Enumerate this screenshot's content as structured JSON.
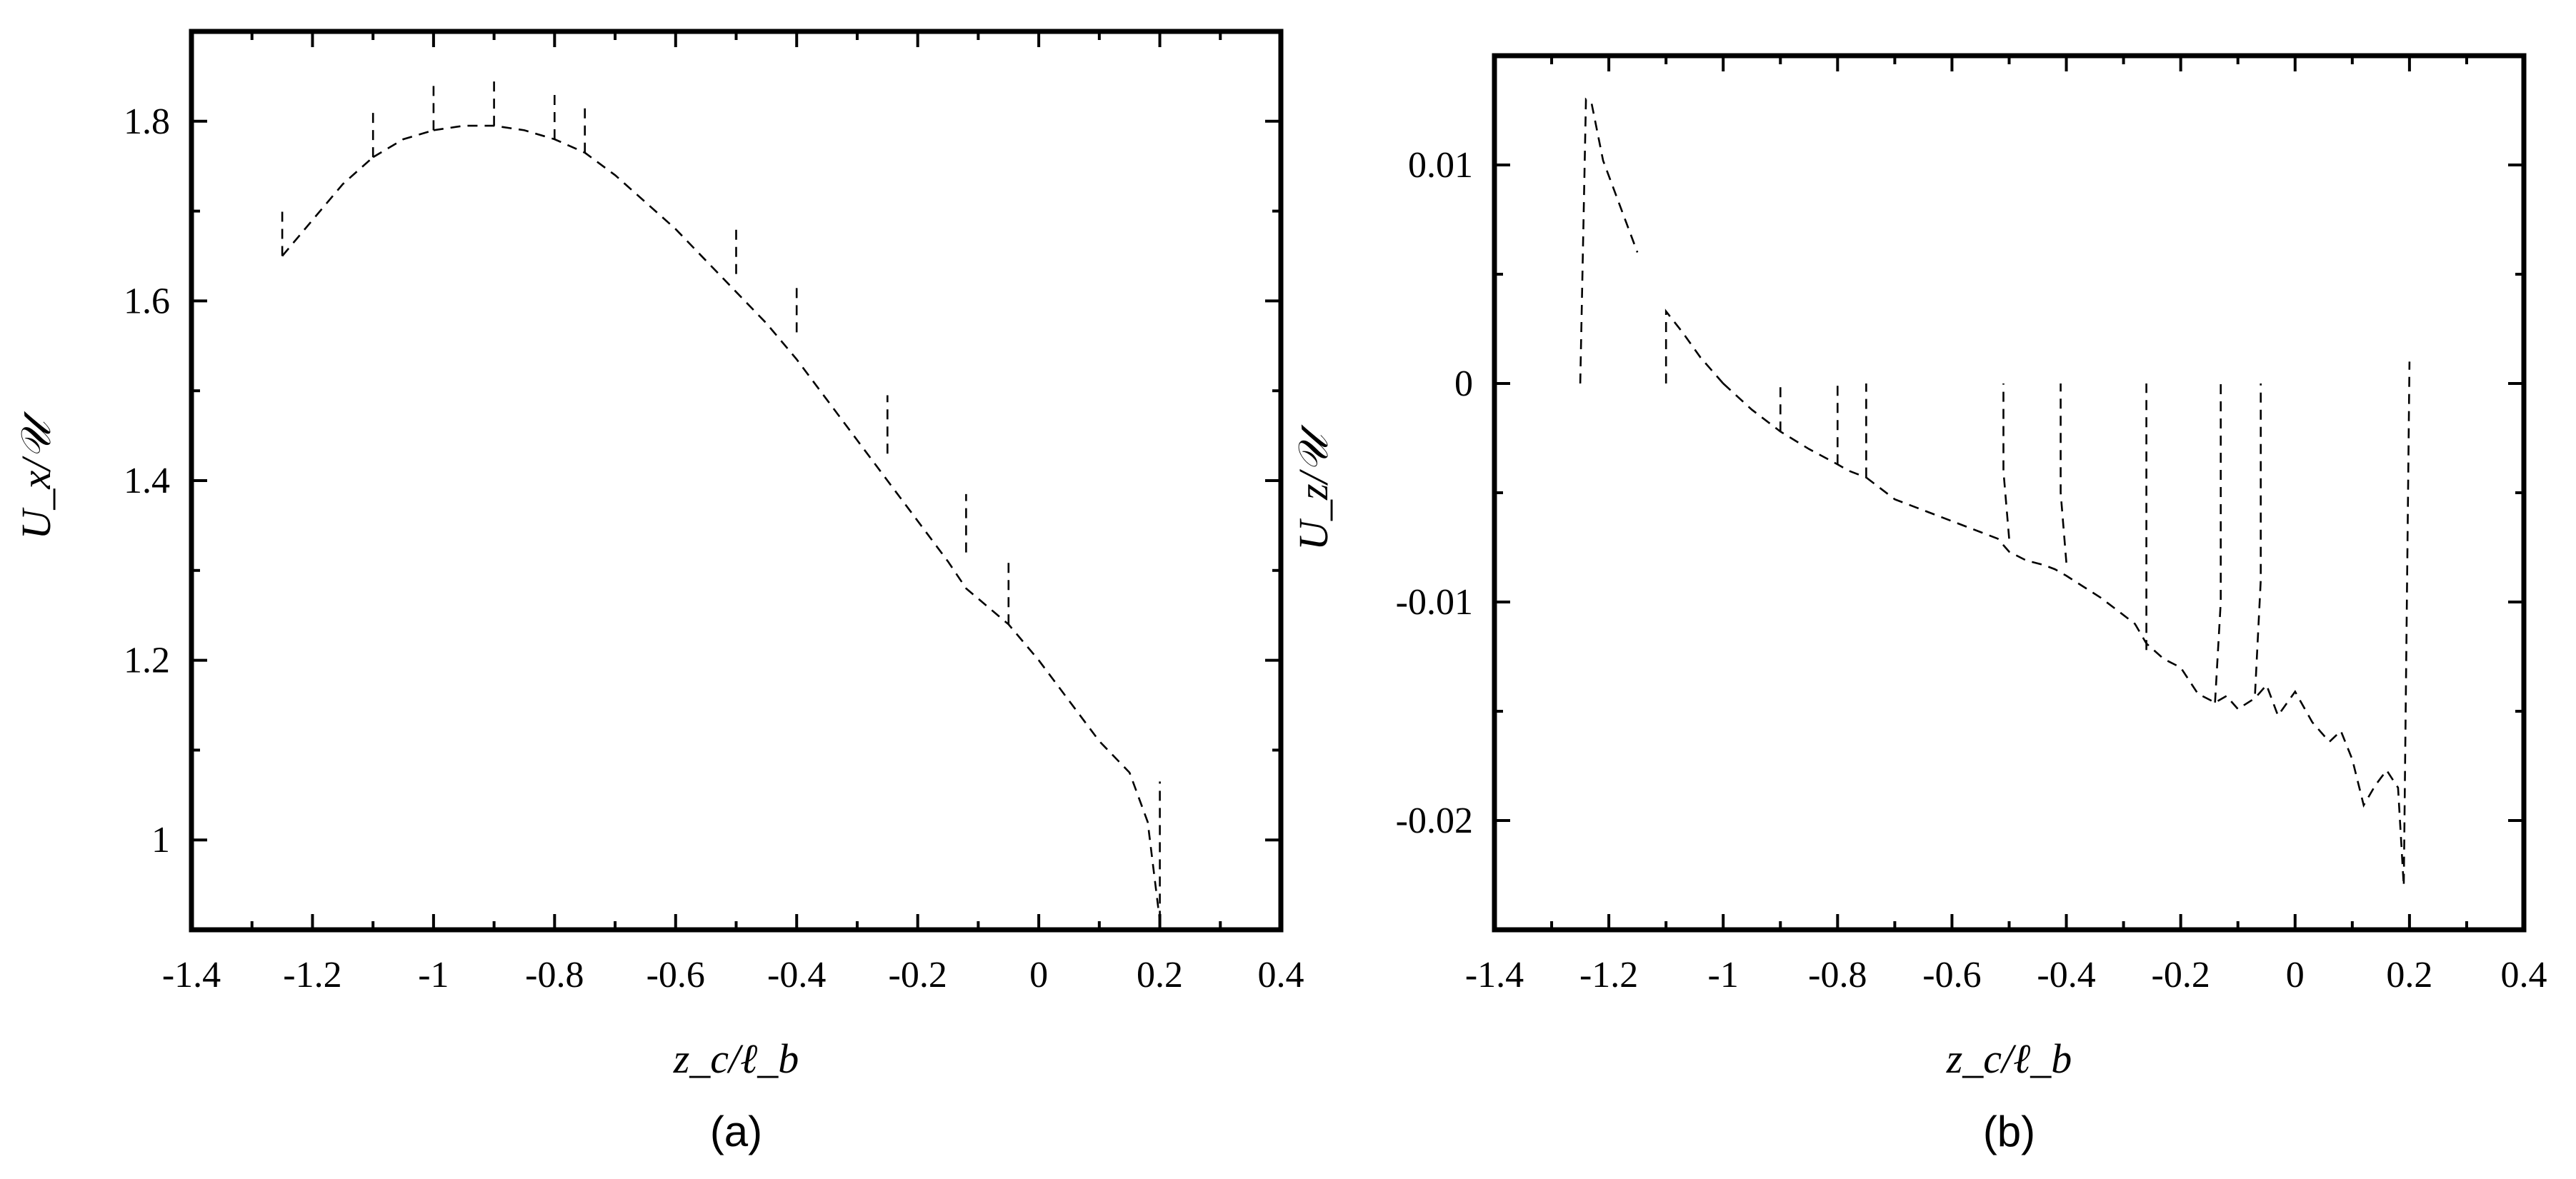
{
  "chart_data": [
    {
      "type": "line",
      "panel_label": "(a)",
      "xlabel": "z_c/ℓ_b",
      "ylabel": "U_x/𝒰",
      "xlim": [
        -1.4,
        0.4
      ],
      "ylim": [
        0.9,
        1.9
      ],
      "xticks": [
        "-1.4",
        "-1.2",
        "-1",
        "-0.8",
        "-0.6",
        "-0.4",
        "-0.2",
        "0",
        "0.2",
        "0.4"
      ],
      "yticks": [
        "1",
        "1.2",
        "1.4",
        "1.6",
        "1.8"
      ],
      "grid": false,
      "series": [
        {
          "x": [
            -1.25,
            -1.2,
            -1.15,
            -1.1
          ],
          "y": [
            1.65,
            1.69,
            1.73,
            1.76
          ]
        },
        {
          "x": [
            -1.1,
            -1.05,
            -1.0
          ],
          "y": [
            1.76,
            1.78,
            1.79
          ]
        },
        {
          "x": [
            -1.0,
            -0.95,
            -0.9,
            -0.85,
            -0.8,
            -0.75,
            -0.7,
            -0.65,
            -0.6,
            -0.55,
            -0.5,
            -0.45,
            -0.4,
            -0.35,
            -0.3,
            -0.25,
            -0.2,
            -0.15,
            -0.12,
            -0.05,
            0.0,
            0.05,
            0.1,
            0.15,
            0.18,
            0.2
          ],
          "y": [
            1.79,
            1.795,
            1.795,
            1.79,
            1.78,
            1.765,
            1.74,
            1.71,
            1.68,
            1.645,
            1.61,
            1.575,
            1.535,
            1.49,
            1.445,
            1.4,
            1.355,
            1.31,
            1.28,
            1.24,
            1.2,
            1.155,
            1.11,
            1.075,
            1.02,
            0.91
          ]
        },
        {
          "x": [
            -1.25,
            -1.25
          ],
          "y": [
            1.65,
            1.7
          ]
        },
        {
          "x": [
            -1.1,
            -1.1
          ],
          "y": [
            1.76,
            1.81
          ]
        },
        {
          "x": [
            -1.0,
            -1.0
          ],
          "y": [
            1.79,
            1.84
          ]
        },
        {
          "x": [
            -0.9,
            -0.9
          ],
          "y": [
            1.795,
            1.845
          ]
        },
        {
          "x": [
            -0.8,
            -0.8
          ],
          "y": [
            1.78,
            1.83
          ]
        },
        {
          "x": [
            -0.75,
            -0.75
          ],
          "y": [
            1.765,
            1.815
          ]
        },
        {
          "x": [
            -0.5,
            -0.5
          ],
          "y": [
            1.63,
            1.68
          ]
        },
        {
          "x": [
            -0.4,
            -0.4
          ],
          "y": [
            1.565,
            1.615
          ]
        },
        {
          "x": [
            -0.25,
            -0.25
          ],
          "y": [
            1.43,
            1.495
          ]
        },
        {
          "x": [
            -0.12,
            -0.12
          ],
          "y": [
            1.32,
            1.385
          ]
        },
        {
          "x": [
            -0.05,
            -0.05
          ],
          "y": [
            1.24,
            1.31
          ]
        },
        {
          "x": [
            0.2,
            0.2
          ],
          "y": [
            0.91,
            1.065
          ]
        }
      ]
    },
    {
      "type": "line",
      "panel_label": "(b)",
      "xlabel": "z_c/ℓ_b",
      "ylabel": "U_z/𝒰",
      "xlim": [
        -1.4,
        0.4
      ],
      "ylim": [
        -0.025,
        0.015
      ],
      "xticks": [
        "-1.4",
        "-1.2",
        "-1",
        "-0.8",
        "-0.6",
        "-0.4",
        "-0.2",
        "0",
        "0.2",
        "0.4"
      ],
      "yticks": [
        "-0.02",
        "-0.01",
        "0",
        "0.01"
      ],
      "grid": false,
      "series": [
        {
          "x": [
            -1.25,
            -1.24,
            -1.23,
            -1.21,
            -1.19,
            -1.17,
            -1.15
          ],
          "y": [
            0.0,
            0.013,
            0.0128,
            0.0102,
            0.0088,
            0.0074,
            0.006
          ]
        },
        {
          "x": [
            -1.1,
            -1.1,
            -1.07,
            -1.04,
            -1.0
          ],
          "y": [
            0.0,
            0.0033,
            0.0023,
            0.0012,
            0.0
          ]
        },
        {
          "x": [
            -1.0,
            -0.95,
            -0.9,
            -0.85,
            -0.8,
            -0.78,
            -0.76,
            -0.75
          ],
          "y": [
            0.0,
            -0.0012,
            -0.0022,
            -0.003,
            -0.0037,
            -0.004,
            -0.0042,
            -0.0043
          ]
        },
        {
          "x": [
            -0.9,
            -0.9
          ],
          "y": [
            -0.0022,
            0.0
          ]
        },
        {
          "x": [
            -0.8,
            -0.8
          ],
          "y": [
            -0.0037,
            0.0
          ]
        },
        {
          "x": [
            -0.75,
            -0.75
          ],
          "y": [
            -0.0043,
            0.0
          ]
        },
        {
          "x": [
            -0.75,
            -0.7,
            -0.65,
            -0.6,
            -0.55,
            -0.52,
            -0.5,
            -0.47,
            -0.44,
            -0.42,
            -0.4,
            -0.37,
            -0.34,
            -0.31,
            -0.28,
            -0.26,
            -0.23,
            -0.2,
            -0.17,
            -0.14,
            -0.12,
            -0.1,
            -0.07,
            -0.05,
            -0.03,
            0.0,
            0.03,
            0.06,
            0.08,
            0.1,
            0.12,
            0.14,
            0.16,
            0.18,
            0.19,
            0.2
          ],
          "y": [
            -0.0043,
            -0.0053,
            -0.0058,
            -0.0063,
            -0.0068,
            -0.0071,
            -0.0077,
            -0.0081,
            -0.0083,
            -0.0085,
            -0.0088,
            -0.0093,
            -0.0098,
            -0.0104,
            -0.011,
            -0.0119,
            -0.0126,
            -0.013,
            -0.0142,
            -0.0146,
            -0.0143,
            -0.0149,
            -0.0144,
            -0.0138,
            -0.0152,
            -0.0141,
            -0.0155,
            -0.0164,
            -0.0159,
            -0.0172,
            -0.0193,
            -0.0184,
            -0.0177,
            -0.0185,
            -0.023,
            0.001
          ]
        },
        {
          "x": [
            -0.5,
            -0.51,
            -0.51
          ],
          "y": [
            -0.0071,
            -0.004,
            0.0
          ]
        },
        {
          "x": [
            -0.4,
            -0.41,
            -0.41
          ],
          "y": [
            -0.0082,
            -0.005,
            0.0
          ]
        },
        {
          "x": [
            -0.26,
            -0.26,
            -0.26
          ],
          "y": [
            -0.0122,
            -0.007,
            0.0
          ]
        },
        {
          "x": [
            -0.14,
            -0.13,
            -0.13
          ],
          "y": [
            -0.0146,
            -0.01,
            0.0
          ]
        },
        {
          "x": [
            -0.07,
            -0.06,
            -0.06
          ],
          "y": [
            -0.0142,
            -0.009,
            0.0
          ]
        }
      ]
    }
  ]
}
